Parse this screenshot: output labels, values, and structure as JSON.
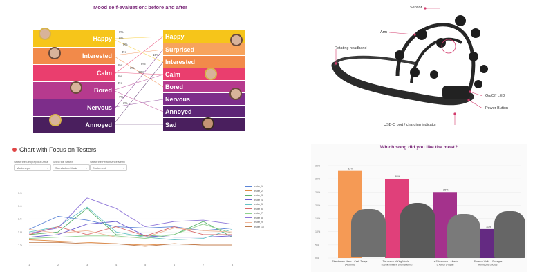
{
  "mood": {
    "title": "Mood self-evaluation: before and after",
    "before": [
      "Happy",
      "Interested",
      "Calm",
      "Bored",
      "Nervous",
      "Annoyed"
    ],
    "after": [
      "Happy",
      "Surprised",
      "Interested",
      "Calm",
      "Bored",
      "Nervous",
      "Annoyed",
      "Sad"
    ],
    "before_colors": [
      "#f6c51a",
      "#f28a4a",
      "#ea3e6e",
      "#b63a8e",
      "#7d2d8a",
      "#4a1f5e"
    ],
    "after_colors": [
      "#f6c51a",
      "#f7a35c",
      "#f28a4a",
      "#ea3e6e",
      "#b63a8e",
      "#7d2d8a",
      "#5d2576",
      "#4a1f5e"
    ],
    "percent_labels": [
      "0%",
      "6%",
      "0%",
      "3%",
      "10%",
      "8%",
      "8%",
      "13%",
      "3%",
      "5%",
      "3%",
      "7%",
      "3%"
    ]
  },
  "headset": {
    "labels": [
      "Sensor",
      "Arm",
      "Rotating headband",
      "On/Off LED",
      "Power Button",
      "USB-C port / charging indicator"
    ]
  },
  "testers": {
    "title": "Chart with Focus on Testers",
    "filters": [
      {
        "label": "Select the Geographical Area",
        "value": "Montenegro"
      },
      {
        "label": "Select the Search",
        "value": "Skenderbeu Music"
      },
      {
        "label": "Select the Performance Metric",
        "value": "Excitement"
      }
    ]
  },
  "songs": {
    "title": "Which song did you like the most?"
  },
  "chart_data": [
    {
      "type": "line",
      "x": [
        1,
        2,
        3,
        4,
        5,
        6,
        7,
        8
      ],
      "x_tick_labels": [
        "1",
        "2",
        "3",
        "4",
        "5",
        "6",
        "7",
        "8"
      ],
      "y_tick_labels": [
        "1.5",
        "2.0",
        "2.5",
        "3.0",
        "3.5"
      ],
      "ylim": [
        1.0,
        3.8
      ],
      "legend_position": "right",
      "series": [
        {
          "name": "tester_1",
          "color": "#5b84d6",
          "values": [
            2.1,
            2.6,
            2.45,
            2.2,
            2.15,
            2.2,
            2.05,
            2.15
          ]
        },
        {
          "name": "tester_2",
          "color": "#e08a44",
          "values": [
            1.7,
            1.65,
            1.6,
            1.55,
            1.5,
            1.55,
            1.5,
            1.5
          ]
        },
        {
          "name": "tester_3",
          "color": "#59b26c",
          "values": [
            1.9,
            2.0,
            2.9,
            1.9,
            1.85,
            1.9,
            2.4,
            1.8
          ]
        },
        {
          "name": "tester_4",
          "color": "#6b5bd0",
          "values": [
            1.8,
            1.9,
            2.3,
            2.4,
            1.85,
            1.8,
            1.8,
            1.85
          ]
        },
        {
          "name": "tester_5",
          "color": "#66c2c5",
          "values": [
            2.0,
            2.2,
            2.95,
            2.0,
            1.8,
            1.7,
            1.75,
            2.1
          ]
        },
        {
          "name": "tester_6",
          "color": "#d96a6a",
          "values": [
            1.9,
            2.2,
            1.9,
            2.2,
            1.85,
            2.2,
            1.9,
            1.9
          ]
        },
        {
          "name": "tester_7",
          "color": "#8fd18f",
          "values": [
            1.75,
            1.8,
            1.85,
            1.85,
            1.75,
            1.9,
            2.3,
            1.95
          ]
        },
        {
          "name": "tester_8",
          "color": "#8f77d9",
          "values": [
            1.95,
            2.15,
            3.3,
            2.9,
            2.2,
            2.4,
            2.45,
            2.3
          ]
        },
        {
          "name": "tester_9",
          "color": "#f0b89a",
          "values": [
            2.1,
            1.95,
            2.05,
            1.8,
            1.8,
            2.15,
            2.05,
            2.0
          ]
        },
        {
          "name": "tester_10",
          "color": "#c07b4d",
          "values": [
            1.6,
            1.6,
            1.55,
            1.55,
            1.45,
            1.55,
            1.5,
            1.5
          ]
        }
      ]
    },
    {
      "type": "bar",
      "categories": [
        "Skenderbeu Music – Cesk Zadeja (Albania)",
        "The march of King Nicola – Ludwig Mlinaric (Montenegro)",
        "La Schiaccosa – Alfredo D'Ascoli (Puglia)",
        "Florence Waltz – Giuseppe Monnaccia (Molise)"
      ],
      "values": [
        33,
        30,
        25,
        11
      ],
      "value_labels": [
        "33%",
        "30%",
        "25%",
        "11%"
      ],
      "colors": [
        "#f59a55",
        "#e0407a",
        "#a4328c",
        "#642a82"
      ],
      "y_tick_labels": [
        "0%",
        "5%",
        "10%",
        "15%",
        "20%",
        "25%",
        "30%",
        "35%"
      ],
      "ylim": [
        0,
        35
      ]
    }
  ]
}
